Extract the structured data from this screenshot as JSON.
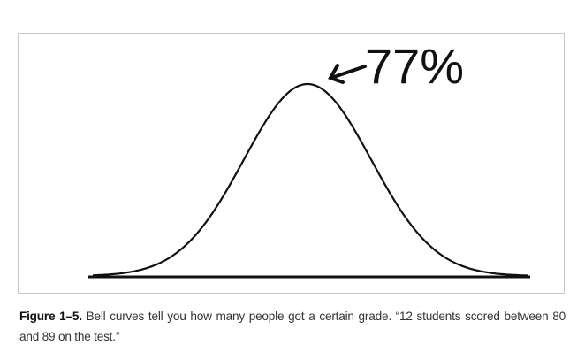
{
  "figure": {
    "annotation": "77%",
    "annotation_arrow": "left-arrow",
    "curve": "bell-curve",
    "colors": {
      "line": "#111111",
      "frame": "#c8c8c8",
      "caption": "#333333"
    }
  },
  "caption": {
    "label": "Figure 1–5.",
    "text": "Bell curves tell you how many people got a certain grade. “12 students scored between 80 and 89 on the test.”"
  }
}
